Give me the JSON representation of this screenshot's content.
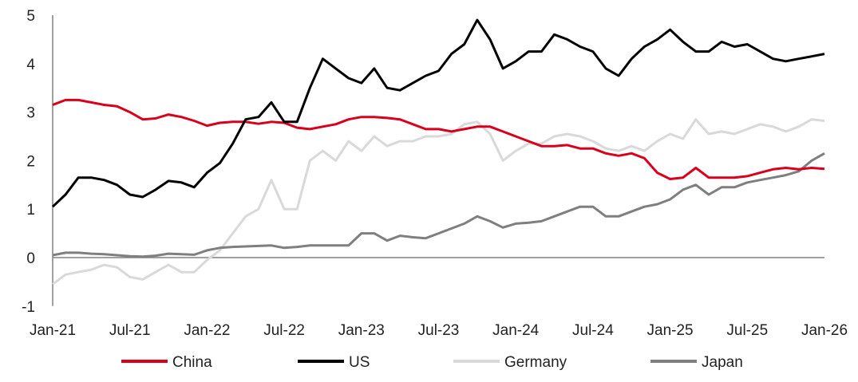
{
  "chart_data": {
    "type": "line",
    "title": "",
    "xlabel": "",
    "ylabel": "",
    "ylim": [
      -1,
      5
    ],
    "yticks": [
      "-1",
      "0",
      "1",
      "2",
      "3",
      "4",
      "5"
    ],
    "xticks": [
      "Jan-21",
      "Jul-21",
      "Jan-22",
      "Jul-22",
      "Jan-23",
      "Jul-23",
      "Jan-24",
      "Jul-24",
      "Jan-25",
      "Jul-25",
      "Jan-26"
    ],
    "x_start": "Jan-21",
    "x_end": "Jan-26",
    "x_frequency": "monthly",
    "grid": false,
    "legend_position": "bottom",
    "series": [
      {
        "name": "China",
        "color": "#d9001b",
        "values": [
          3.15,
          3.25,
          3.25,
          3.2,
          3.15,
          3.12,
          3.0,
          2.85,
          2.87,
          2.95,
          2.9,
          2.82,
          2.72,
          2.78,
          2.8,
          2.8,
          2.76,
          2.8,
          2.78,
          2.68,
          2.65,
          2.7,
          2.75,
          2.85,
          2.9,
          2.9,
          2.88,
          2.85,
          2.75,
          2.65,
          2.65,
          2.6,
          2.65,
          2.7,
          2.7,
          2.6,
          2.5,
          2.4,
          2.3,
          2.3,
          2.32,
          2.25,
          2.25,
          2.15,
          2.1,
          2.15,
          2.05,
          1.75,
          1.62,
          1.65,
          1.85,
          1.65,
          1.65,
          1.65,
          1.68,
          1.75,
          1.82,
          1.85,
          1.82,
          1.85,
          1.83
        ]
      },
      {
        "name": "US",
        "color": "#000000",
        "values": [
          1.05,
          1.3,
          1.65,
          1.65,
          1.6,
          1.5,
          1.3,
          1.25,
          1.4,
          1.58,
          1.55,
          1.45,
          1.75,
          1.95,
          2.35,
          2.85,
          2.9,
          3.2,
          2.8,
          2.8,
          3.5,
          4.1,
          3.9,
          3.7,
          3.6,
          3.9,
          3.5,
          3.45,
          3.6,
          3.75,
          3.85,
          4.2,
          4.4,
          4.9,
          4.5,
          3.9,
          4.05,
          4.25,
          4.25,
          4.6,
          4.5,
          4.35,
          4.25,
          3.9,
          3.75,
          4.1,
          4.35,
          4.5,
          4.7,
          4.45,
          4.25,
          4.25,
          4.45,
          4.35,
          4.4,
          4.25,
          4.1,
          4.05,
          4.1,
          4.15,
          4.2
        ]
      },
      {
        "name": "Germany",
        "color": "#d9d9d9",
        "values": [
          -0.55,
          -0.35,
          -0.3,
          -0.25,
          -0.15,
          -0.2,
          -0.4,
          -0.45,
          -0.3,
          -0.15,
          -0.3,
          -0.3,
          -0.05,
          0.15,
          0.5,
          0.85,
          1.0,
          1.6,
          1.0,
          1.0,
          2.0,
          2.2,
          2.0,
          2.4,
          2.2,
          2.5,
          2.3,
          2.4,
          2.4,
          2.5,
          2.5,
          2.55,
          2.75,
          2.8,
          2.55,
          2.0,
          2.2,
          2.35,
          2.35,
          2.5,
          2.55,
          2.5,
          2.4,
          2.25,
          2.2,
          2.3,
          2.2,
          2.4,
          2.55,
          2.45,
          2.85,
          2.55,
          2.6,
          2.55,
          2.65,
          2.75,
          2.7,
          2.6,
          2.7,
          2.85,
          2.82
        ]
      },
      {
        "name": "Japan",
        "color": "#7f7f7f",
        "values": [
          0.05,
          0.1,
          0.1,
          0.08,
          0.07,
          0.05,
          0.03,
          0.02,
          0.04,
          0.08,
          0.07,
          0.06,
          0.15,
          0.2,
          0.22,
          0.23,
          0.24,
          0.25,
          0.2,
          0.22,
          0.25,
          0.25,
          0.25,
          0.25,
          0.5,
          0.5,
          0.35,
          0.45,
          0.42,
          0.4,
          0.5,
          0.6,
          0.7,
          0.85,
          0.75,
          0.62,
          0.7,
          0.72,
          0.75,
          0.85,
          0.95,
          1.05,
          1.05,
          0.85,
          0.85,
          0.95,
          1.05,
          1.1,
          1.2,
          1.4,
          1.5,
          1.3,
          1.45,
          1.45,
          1.55,
          1.6,
          1.65,
          1.7,
          1.78,
          2.0,
          2.15
        ]
      }
    ]
  }
}
